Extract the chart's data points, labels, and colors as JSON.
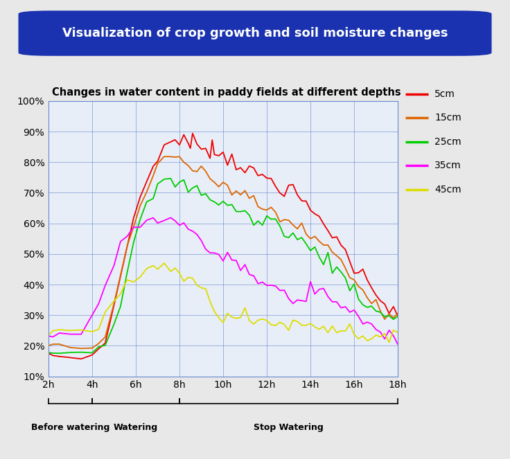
{
  "title_box": "Visualization of crop growth and soil moisture changes",
  "chart_title": "Changes in water content in paddy fields at different depths",
  "bg_color": "#e8e8e8",
  "plot_bg_color": "#e8eef8",
  "grid_color": "#6688cc",
  "title_box_color": "#1a32b0",
  "title_text_color": "#ffffff",
  "x_ticks": [
    2,
    4,
    6,
    8,
    10,
    12,
    14,
    16,
    18
  ],
  "x_tick_labels": [
    "2h",
    "4h",
    "6h",
    "8h",
    "10h",
    "12h",
    "14h",
    "16h",
    "18h"
  ],
  "y_ticks": [
    10,
    20,
    30,
    40,
    50,
    60,
    70,
    80,
    90,
    100
  ],
  "y_tick_labels": [
    "10%",
    "20%",
    "30%",
    "40%",
    "50%",
    "60%",
    "70%",
    "80%",
    "90%",
    "100%"
  ],
  "ylim": [
    10,
    100
  ],
  "xlim": [
    2,
    18
  ],
  "legend_labels": [
    "5cm",
    "15cm",
    "25cm",
    "35cm",
    "45cm"
  ],
  "legend_colors": [
    "#ee0000",
    "#dd6600",
    "#00cc00",
    "#ff00ff",
    "#dddd00"
  ],
  "phase_labels": [
    "Before watering",
    "Watering",
    "Stop Watering"
  ],
  "phase_starts": [
    2,
    4,
    8
  ],
  "phase_ends": [
    4,
    8,
    18
  ],
  "series": {
    "5cm": {
      "color": "#ee0000",
      "points": [
        [
          2.0,
          17
        ],
        [
          2.2,
          17
        ],
        [
          2.5,
          16.5
        ],
        [
          3.0,
          16
        ],
        [
          3.5,
          16
        ],
        [
          4.0,
          17
        ],
        [
          4.3,
          19
        ],
        [
          4.6,
          23
        ],
        [
          5.0,
          32
        ],
        [
          5.3,
          42
        ],
        [
          5.6,
          53
        ],
        [
          5.9,
          62
        ],
        [
          6.2,
          68
        ],
        [
          6.5,
          74
        ],
        [
          6.8,
          79
        ],
        [
          7.0,
          82
        ],
        [
          7.3,
          85
        ],
        [
          7.6,
          86.5
        ],
        [
          7.8,
          87
        ],
        [
          8.0,
          87.5
        ],
        [
          8.2,
          87
        ],
        [
          8.4,
          86
        ],
        [
          8.5,
          85
        ],
        [
          8.6,
          87
        ],
        [
          8.8,
          86
        ],
        [
          9.0,
          86
        ],
        [
          9.2,
          85
        ],
        [
          9.4,
          84
        ],
        [
          9.5,
          86
        ],
        [
          9.6,
          83
        ],
        [
          9.8,
          83
        ],
        [
          10.0,
          82
        ],
        [
          10.2,
          81
        ],
        [
          10.4,
          82
        ],
        [
          10.6,
          80
        ],
        [
          10.8,
          79
        ],
        [
          11.0,
          78
        ],
        [
          11.2,
          77
        ],
        [
          11.4,
          76
        ],
        [
          11.6,
          76
        ],
        [
          11.8,
          75
        ],
        [
          12.0,
          75
        ],
        [
          12.2,
          74
        ],
        [
          12.4,
          73
        ],
        [
          12.6,
          72
        ],
        [
          12.8,
          71
        ],
        [
          13.0,
          72
        ],
        [
          13.2,
          70
        ],
        [
          13.4,
          69
        ],
        [
          13.6,
          68
        ],
        [
          13.8,
          65
        ],
        [
          14.0,
          64
        ],
        [
          14.2,
          63
        ],
        [
          14.4,
          62
        ],
        [
          14.6,
          60
        ],
        [
          14.8,
          58
        ],
        [
          15.0,
          57
        ],
        [
          15.2,
          55
        ],
        [
          15.4,
          53
        ],
        [
          15.6,
          50
        ],
        [
          15.8,
          48
        ],
        [
          16.0,
          46
        ],
        [
          16.2,
          44
        ],
        [
          16.4,
          43
        ],
        [
          16.6,
          42
        ],
        [
          16.8,
          40
        ],
        [
          17.0,
          38
        ],
        [
          17.2,
          36
        ],
        [
          17.4,
          34
        ],
        [
          17.6,
          32
        ],
        [
          17.8,
          31
        ],
        [
          18.0,
          30
        ]
      ]
    },
    "15cm": {
      "color": "#dd6600",
      "points": [
        [
          2.0,
          20
        ],
        [
          2.2,
          20
        ],
        [
          2.5,
          20
        ],
        [
          3.0,
          19.5
        ],
        [
          3.5,
          19
        ],
        [
          4.0,
          19
        ],
        [
          4.3,
          21
        ],
        [
          4.6,
          25
        ],
        [
          5.0,
          33
        ],
        [
          5.3,
          42
        ],
        [
          5.6,
          52
        ],
        [
          5.9,
          60
        ],
        [
          6.2,
          66
        ],
        [
          6.5,
          71
        ],
        [
          6.8,
          76
        ],
        [
          7.0,
          78
        ],
        [
          7.3,
          80
        ],
        [
          7.6,
          81
        ],
        [
          7.8,
          81
        ],
        [
          8.0,
          81
        ],
        [
          8.2,
          80
        ],
        [
          8.4,
          79
        ],
        [
          8.6,
          78
        ],
        [
          8.8,
          77
        ],
        [
          9.0,
          76
        ],
        [
          9.2,
          76
        ],
        [
          9.4,
          75
        ],
        [
          9.6,
          74
        ],
        [
          9.8,
          73
        ],
        [
          10.0,
          73
        ],
        [
          10.2,
          72
        ],
        [
          10.4,
          71
        ],
        [
          10.6,
          70
        ],
        [
          10.8,
          70
        ],
        [
          11.0,
          69
        ],
        [
          11.2,
          68
        ],
        [
          11.4,
          67
        ],
        [
          11.6,
          66
        ],
        [
          11.8,
          65
        ],
        [
          12.0,
          64
        ],
        [
          12.2,
          64
        ],
        [
          12.4,
          63
        ],
        [
          12.6,
          62
        ],
        [
          12.8,
          61
        ],
        [
          13.0,
          61
        ],
        [
          13.2,
          60
        ],
        [
          13.4,
          59
        ],
        [
          13.6,
          58
        ],
        [
          13.8,
          57
        ],
        [
          14.0,
          56
        ],
        [
          14.2,
          55
        ],
        [
          14.4,
          54
        ],
        [
          14.6,
          53
        ],
        [
          14.8,
          52
        ],
        [
          15.0,
          50
        ],
        [
          15.2,
          49
        ],
        [
          15.4,
          47
        ],
        [
          15.6,
          45
        ],
        [
          15.8,
          43
        ],
        [
          16.0,
          42
        ],
        [
          16.2,
          40
        ],
        [
          16.4,
          38
        ],
        [
          16.6,
          37
        ],
        [
          16.8,
          36
        ],
        [
          17.0,
          35
        ],
        [
          17.2,
          33
        ],
        [
          17.4,
          31
        ],
        [
          17.6,
          30
        ],
        [
          17.8,
          30
        ],
        [
          18.0,
          30
        ]
      ]
    },
    "25cm": {
      "color": "#00cc00",
      "points": [
        [
          2.0,
          18
        ],
        [
          2.2,
          18
        ],
        [
          2.5,
          18
        ],
        [
          3.0,
          18
        ],
        [
          3.5,
          18
        ],
        [
          4.0,
          18
        ],
        [
          4.3,
          20
        ],
        [
          4.6,
          22
        ],
        [
          5.0,
          27
        ],
        [
          5.3,
          35
        ],
        [
          5.6,
          44
        ],
        [
          5.9,
          53
        ],
        [
          6.2,
          60
        ],
        [
          6.5,
          65
        ],
        [
          6.8,
          70
        ],
        [
          7.0,
          72
        ],
        [
          7.3,
          73
        ],
        [
          7.6,
          73.5
        ],
        [
          7.8,
          73
        ],
        [
          8.0,
          73
        ],
        [
          8.2,
          72
        ],
        [
          8.4,
          72
        ],
        [
          8.6,
          71
        ],
        [
          8.8,
          71
        ],
        [
          9.0,
          70
        ],
        [
          9.2,
          69
        ],
        [
          9.4,
          69
        ],
        [
          9.6,
          68
        ],
        [
          9.8,
          67
        ],
        [
          10.0,
          67
        ],
        [
          10.2,
          66
        ],
        [
          10.4,
          65
        ],
        [
          10.6,
          65
        ],
        [
          10.8,
          64
        ],
        [
          11.0,
          63
        ],
        [
          11.2,
          62
        ],
        [
          11.4,
          61
        ],
        [
          11.6,
          60
        ],
        [
          11.8,
          60
        ],
        [
          12.0,
          62
        ],
        [
          12.2,
          61
        ],
        [
          12.4,
          60
        ],
        [
          12.6,
          59
        ],
        [
          12.8,
          58
        ],
        [
          13.0,
          57
        ],
        [
          13.2,
          56
        ],
        [
          13.4,
          55
        ],
        [
          13.6,
          54
        ],
        [
          13.8,
          53
        ],
        [
          14.0,
          52
        ],
        [
          14.2,
          51
        ],
        [
          14.4,
          50
        ],
        [
          14.6,
          49
        ],
        [
          14.8,
          48
        ],
        [
          15.0,
          46
        ],
        [
          15.2,
          45
        ],
        [
          15.4,
          43
        ],
        [
          15.6,
          42
        ],
        [
          15.8,
          40
        ],
        [
          16.0,
          39
        ],
        [
          16.2,
          37
        ],
        [
          16.4,
          35
        ],
        [
          16.6,
          33
        ],
        [
          16.8,
          32
        ],
        [
          17.0,
          31
        ],
        [
          17.2,
          30
        ],
        [
          17.4,
          30
        ],
        [
          17.6,
          30
        ],
        [
          17.8,
          30
        ],
        [
          18.0,
          30
        ]
      ]
    },
    "35cm": {
      "color": "#ff00ff",
      "points": [
        [
          2.0,
          23
        ],
        [
          2.2,
          23
        ],
        [
          2.5,
          24
        ],
        [
          3.0,
          24
        ],
        [
          3.5,
          24
        ],
        [
          4.0,
          30
        ],
        [
          4.3,
          34
        ],
        [
          4.6,
          39
        ],
        [
          5.0,
          46
        ],
        [
          5.3,
          52
        ],
        [
          5.6,
          56
        ],
        [
          5.9,
          59
        ],
        [
          6.2,
          60
        ],
        [
          6.5,
          61
        ],
        [
          6.8,
          61
        ],
        [
          7.0,
          61
        ],
        [
          7.3,
          61
        ],
        [
          7.6,
          61
        ],
        [
          7.8,
          61
        ],
        [
          8.0,
          60
        ],
        [
          8.2,
          59
        ],
        [
          8.4,
          58
        ],
        [
          8.6,
          57
        ],
        [
          8.8,
          55
        ],
        [
          9.0,
          53
        ],
        [
          9.2,
          52
        ],
        [
          9.4,
          51
        ],
        [
          9.6,
          50
        ],
        [
          9.8,
          50
        ],
        [
          10.0,
          50
        ],
        [
          10.2,
          49
        ],
        [
          10.4,
          48
        ],
        [
          10.6,
          47
        ],
        [
          10.8,
          46
        ],
        [
          11.0,
          45
        ],
        [
          11.2,
          44
        ],
        [
          11.4,
          43
        ],
        [
          11.6,
          42
        ],
        [
          11.8,
          41
        ],
        [
          12.0,
          40
        ],
        [
          12.2,
          40
        ],
        [
          12.4,
          39
        ],
        [
          12.6,
          38
        ],
        [
          12.8,
          37
        ],
        [
          13.0,
          36
        ],
        [
          13.2,
          35
        ],
        [
          13.4,
          35
        ],
        [
          13.6,
          34
        ],
        [
          13.8,
          33
        ],
        [
          14.0,
          40
        ],
        [
          14.2,
          39
        ],
        [
          14.4,
          38
        ],
        [
          14.6,
          37
        ],
        [
          14.8,
          36
        ],
        [
          15.0,
          35
        ],
        [
          15.2,
          34
        ],
        [
          15.4,
          33
        ],
        [
          15.6,
          32
        ],
        [
          15.8,
          31
        ],
        [
          16.0,
          30
        ],
        [
          16.2,
          29
        ],
        [
          16.4,
          28
        ],
        [
          16.6,
          27
        ],
        [
          16.8,
          26
        ],
        [
          17.0,
          26
        ],
        [
          17.2,
          25
        ],
        [
          17.4,
          25
        ],
        [
          17.6,
          24
        ],
        [
          17.8,
          24
        ],
        [
          18.0,
          23
        ]
      ]
    },
    "45cm": {
      "color": "#dddd00",
      "points": [
        [
          2.0,
          24
        ],
        [
          2.2,
          25
        ],
        [
          2.5,
          25
        ],
        [
          3.0,
          25
        ],
        [
          3.5,
          25
        ],
        [
          4.0,
          25
        ],
        [
          4.3,
          27
        ],
        [
          4.6,
          30
        ],
        [
          5.0,
          34
        ],
        [
          5.3,
          37
        ],
        [
          5.6,
          40
        ],
        [
          5.9,
          42
        ],
        [
          6.2,
          43
        ],
        [
          6.5,
          44
        ],
        [
          6.8,
          44
        ],
        [
          7.0,
          45
        ],
        [
          7.3,
          45
        ],
        [
          7.6,
          45
        ],
        [
          7.8,
          45
        ],
        [
          8.0,
          44
        ],
        [
          8.2,
          43
        ],
        [
          8.4,
          42
        ],
        [
          8.6,
          41
        ],
        [
          8.8,
          40
        ],
        [
          9.0,
          39
        ],
        [
          9.2,
          37
        ],
        [
          9.4,
          36
        ],
        [
          9.6,
          33
        ],
        [
          9.8,
          30
        ],
        [
          10.0,
          29
        ],
        [
          10.2,
          29
        ],
        [
          10.4,
          29
        ],
        [
          10.6,
          30
        ],
        [
          10.8,
          30
        ],
        [
          11.0,
          29
        ],
        [
          11.2,
          29
        ],
        [
          11.4,
          28
        ],
        [
          11.6,
          28
        ],
        [
          11.8,
          28
        ],
        [
          12.0,
          28
        ],
        [
          12.2,
          28
        ],
        [
          12.4,
          28
        ],
        [
          12.6,
          27
        ],
        [
          12.8,
          27
        ],
        [
          13.0,
          27
        ],
        [
          13.2,
          27
        ],
        [
          13.4,
          27
        ],
        [
          13.6,
          27
        ],
        [
          13.8,
          27
        ],
        [
          14.0,
          27
        ],
        [
          14.2,
          27
        ],
        [
          14.4,
          27
        ],
        [
          14.6,
          26
        ],
        [
          14.8,
          26
        ],
        [
          15.0,
          26
        ],
        [
          15.2,
          26
        ],
        [
          15.4,
          25
        ],
        [
          15.6,
          25
        ],
        [
          15.8,
          25
        ],
        [
          16.0,
          25
        ],
        [
          16.2,
          24
        ],
        [
          16.4,
          24
        ],
        [
          16.6,
          23
        ],
        [
          16.8,
          23
        ],
        [
          17.0,
          23
        ],
        [
          17.2,
          22
        ],
        [
          17.4,
          22
        ],
        [
          17.6,
          22
        ],
        [
          17.8,
          22
        ],
        [
          18.0,
          22
        ]
      ]
    }
  }
}
